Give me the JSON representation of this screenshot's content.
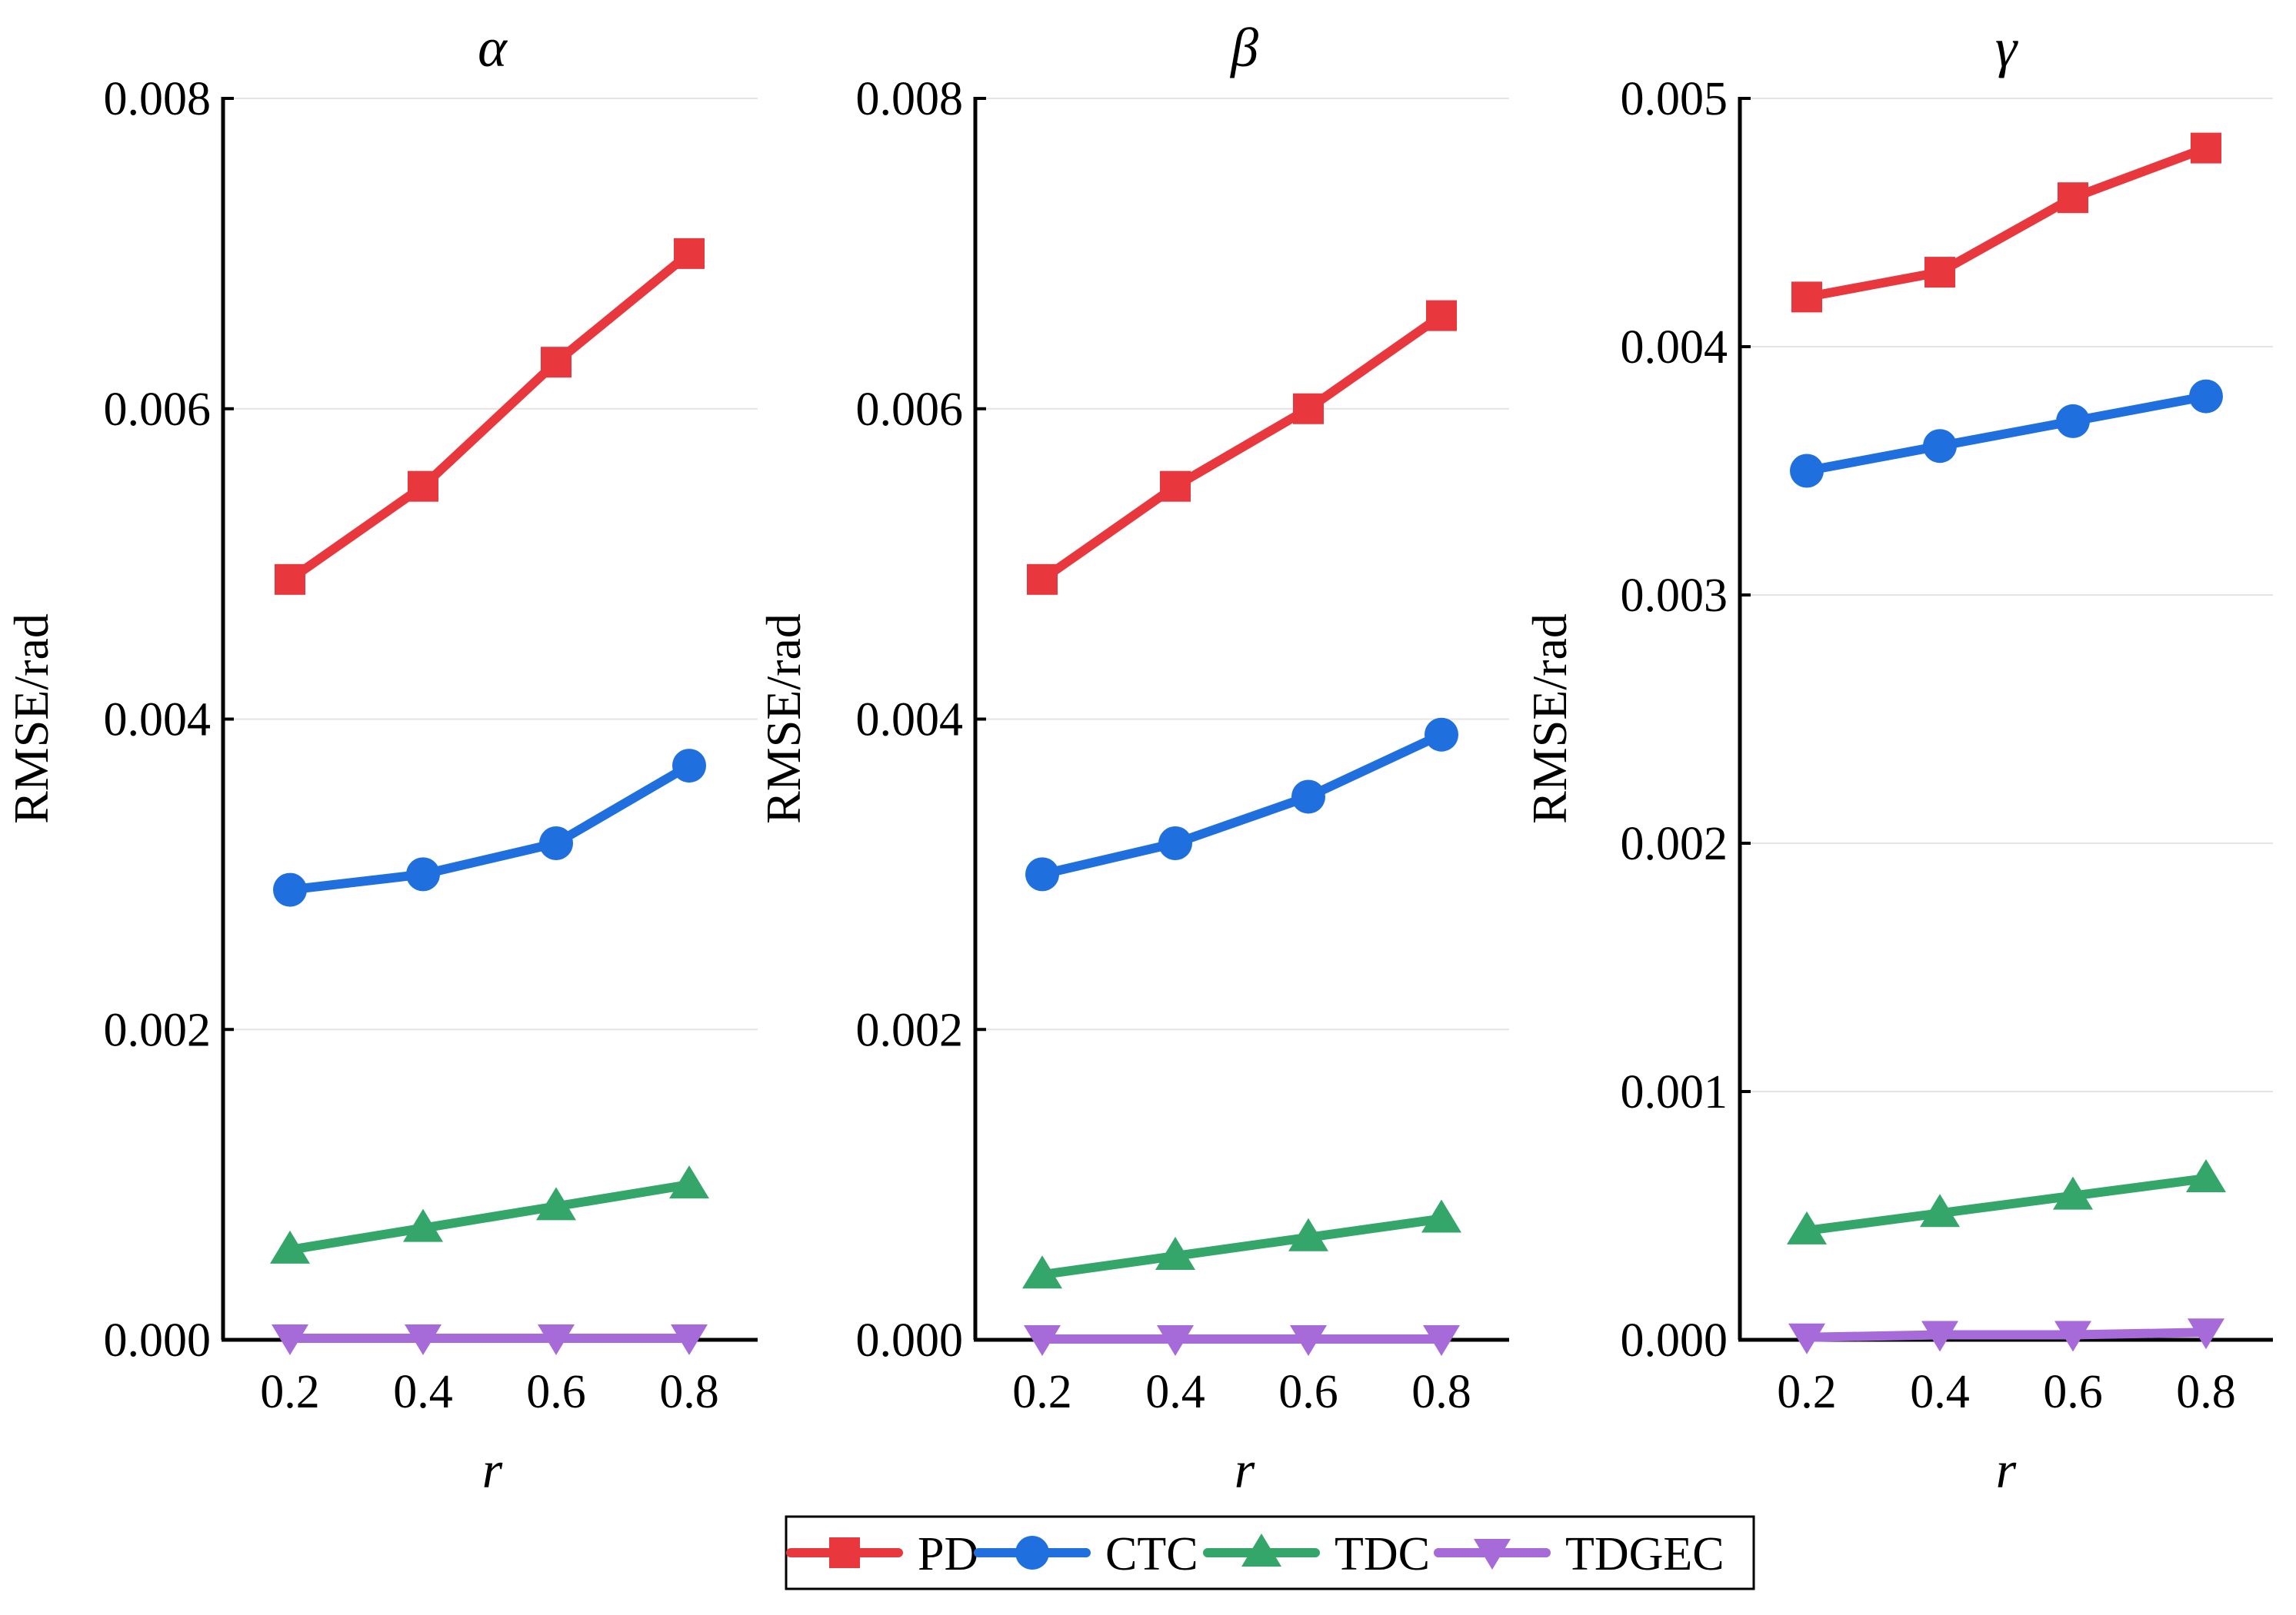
{
  "legend": {
    "items": [
      {
        "label": "PD",
        "color": "#e8383d",
        "marker": "square"
      },
      {
        "label": "CTC",
        "color": "#1f6fde",
        "marker": "circle"
      },
      {
        "label": "TDC",
        "color": "#35a66a",
        "marker": "triangle-up"
      },
      {
        "label": "TDGEC",
        "color": "#a66ad9",
        "marker": "triangle-down"
      }
    ]
  },
  "chart_data": [
    {
      "type": "line",
      "title": "α",
      "xlabel": "r",
      "ylabel": "RMSE/rad",
      "x": [
        0.2,
        0.4,
        0.6,
        0.8
      ],
      "xticks": [
        "0.2",
        "0.4",
        "0.6",
        "0.8"
      ],
      "ylim": [
        0,
        0.008
      ],
      "yticks": [
        "0.000",
        "0.002",
        "0.004",
        "0.006",
        "0.008"
      ],
      "ytick_values": [
        0,
        0.002,
        0.004,
        0.006,
        0.008
      ],
      "grid": true,
      "series": [
        {
          "name": "PD",
          "values": [
            0.0049,
            0.0055,
            0.0063,
            0.007
          ]
        },
        {
          "name": "CTC",
          "values": [
            0.0029,
            0.003,
            0.0032,
            0.0037
          ]
        },
        {
          "name": "TDC",
          "values": [
            0.00058,
            0.00072,
            0.00086,
            0.001
          ]
        },
        {
          "name": "TDGEC",
          "values": [
            1e-05,
            1e-05,
            1e-05,
            1e-05
          ]
        }
      ]
    },
    {
      "type": "line",
      "title": "β",
      "xlabel": "r",
      "ylabel": "RMSE/rad",
      "x": [
        0.2,
        0.4,
        0.6,
        0.8
      ],
      "xticks": [
        "0.2",
        "0.4",
        "0.6",
        "0.8"
      ],
      "ylim": [
        0,
        0.008
      ],
      "yticks": [
        "0.000",
        "0.002",
        "0.004",
        "0.006",
        "0.008"
      ],
      "ytick_values": [
        0,
        0.002,
        0.004,
        0.006,
        0.008
      ],
      "grid": true,
      "series": [
        {
          "name": "PD",
          "values": [
            0.0049,
            0.0055,
            0.006,
            0.0066
          ]
        },
        {
          "name": "CTC",
          "values": [
            0.003,
            0.0032,
            0.0035,
            0.0039
          ]
        },
        {
          "name": "TDC",
          "values": [
            0.00042,
            0.00054,
            0.00066,
            0.00078
          ]
        },
        {
          "name": "TDGEC",
          "values": [
            5e-06,
            5e-06,
            5e-06,
            5e-06
          ]
        }
      ]
    },
    {
      "type": "line",
      "title": "γ",
      "xlabel": "r",
      "ylabel": "RMSE/rad",
      "x": [
        0.2,
        0.4,
        0.6,
        0.8
      ],
      "xticks": [
        "0.2",
        "0.4",
        "0.6",
        "0.8"
      ],
      "ylim": [
        0,
        0.005
      ],
      "yticks": [
        "0.000",
        "0.001",
        "0.002",
        "0.003",
        "0.004",
        "0.005"
      ],
      "ytick_values": [
        0,
        0.001,
        0.002,
        0.003,
        0.004,
        0.005
      ],
      "grid": true,
      "series": [
        {
          "name": "PD",
          "values": [
            0.0042,
            0.0043,
            0.0046,
            0.0048
          ]
        },
        {
          "name": "CTC",
          "values": [
            0.0035,
            0.0036,
            0.0037,
            0.0038
          ]
        },
        {
          "name": "TDC",
          "values": [
            0.00044,
            0.00051,
            0.00058,
            0.00065
          ]
        },
        {
          "name": "TDGEC",
          "values": [
            1e-05,
            2e-05,
            2e-05,
            3e-05
          ]
        }
      ]
    }
  ]
}
